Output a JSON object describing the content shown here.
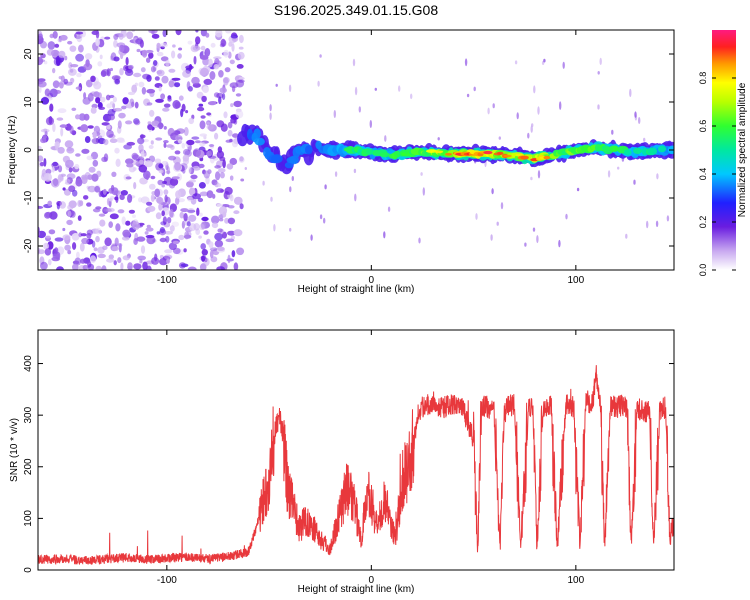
{
  "title": "S196.2025.349.01.15.G08",
  "colors": {
    "snr_line": "#e8383c",
    "frame": "#000000",
    "scatter_violet": "#6a1de0"
  },
  "chart_data": [
    {
      "type": "heatmap",
      "name": "spectrogram",
      "xlabel": "Height of straight line (km)",
      "ylabel": "Frequency (Hz)",
      "xlim": [
        -163,
        148
      ],
      "ylim": [
        -25,
        25
      ],
      "xticks": [
        -100,
        0,
        100
      ],
      "yticks": [
        -20,
        -10,
        0,
        10,
        20
      ],
      "xtick_labels": [
        "-100",
        "0",
        "100"
      ],
      "ytick_labels": [
        "-20",
        "-10",
        "0",
        "10",
        "20"
      ],
      "colorbar": {
        "label": "Normalized spectral amplitude",
        "range": [
          0,
          1
        ],
        "ticks": [
          0.0,
          0.2,
          0.4,
          0.6,
          0.8
        ],
        "tick_labels": [
          "0.0",
          "0.2",
          "0.4",
          "0.6",
          "0.8"
        ]
      },
      "noise_region": {
        "x": [
          -163,
          -63
        ],
        "level": 0.1
      },
      "ridge": [
        {
          "x": -63,
          "f": 3.5,
          "a": 0.28
        },
        {
          "x": -55,
          "f": 2.5,
          "a": 0.35
        },
        {
          "x": -48,
          "f": -1.5,
          "a": 0.3
        },
        {
          "x": -42,
          "f": -3.0,
          "a": 0.3
        },
        {
          "x": -36,
          "f": -1.0,
          "a": 0.32
        },
        {
          "x": -28,
          "f": 0.2,
          "a": 0.3
        },
        {
          "x": -20,
          "f": 0.0,
          "a": 0.35
        },
        {
          "x": -10,
          "f": 0.0,
          "a": 0.55
        },
        {
          "x": 0,
          "f": -0.5,
          "a": 0.5
        },
        {
          "x": 10,
          "f": -1.0,
          "a": 0.55
        },
        {
          "x": 20,
          "f": -0.5,
          "a": 0.65
        },
        {
          "x": 30,
          "f": -0.5,
          "a": 0.7
        },
        {
          "x": 40,
          "f": -0.8,
          "a": 0.85
        },
        {
          "x": 50,
          "f": -0.8,
          "a": 0.9
        },
        {
          "x": 60,
          "f": -0.8,
          "a": 0.85
        },
        {
          "x": 70,
          "f": -1.2,
          "a": 0.75
        },
        {
          "x": 80,
          "f": -1.8,
          "a": 0.85
        },
        {
          "x": 90,
          "f": -1.0,
          "a": 0.7
        },
        {
          "x": 100,
          "f": 0.0,
          "a": 0.65
        },
        {
          "x": 110,
          "f": 0.5,
          "a": 0.6
        },
        {
          "x": 120,
          "f": 0.0,
          "a": 0.55
        },
        {
          "x": 130,
          "f": -0.5,
          "a": 0.5
        },
        {
          "x": 140,
          "f": 0.0,
          "a": 0.45
        },
        {
          "x": 148,
          "f": 0.0,
          "a": 0.45
        }
      ]
    },
    {
      "type": "line",
      "name": "snr",
      "xlabel": "Height of straight line (km)",
      "ylabel": "SNR (10 * v/v)",
      "xlim": [
        -163,
        148
      ],
      "ylim": [
        0,
        465
      ],
      "xticks": [
        -100,
        0,
        100
      ],
      "yticks": [
        0,
        100,
        200,
        300,
        400
      ],
      "xtick_labels": [
        "-100",
        "0",
        "100"
      ],
      "ytick_labels": [
        "0",
        "100",
        "200",
        "300",
        "400"
      ],
      "series": [
        {
          "name": "SNR",
          "x": [
            -163,
            -150,
            -140,
            -130,
            -120,
            -110,
            -100,
            -90,
            -80,
            -70,
            -60,
            -55,
            -50,
            -47,
            -45,
            -43,
            -41,
            -38,
            -35,
            -32,
            -28,
            -25,
            -20,
            -17,
            -12,
            -8,
            -5,
            -2,
            0,
            3,
            6,
            9,
            12,
            15,
            18,
            20,
            23,
            25,
            27,
            30,
            35,
            40,
            45,
            50,
            52,
            54,
            57,
            60,
            63,
            65,
            67,
            70,
            73,
            77,
            79,
            81,
            84,
            86,
            88,
            91,
            95,
            97,
            99,
            102,
            105,
            108,
            110,
            112,
            114,
            117,
            120,
            123,
            125,
            127,
            130,
            134,
            136,
            138,
            141,
            144,
            146,
            148
          ],
          "y": [
            20,
            22,
            18,
            21,
            24,
            20,
            23,
            25,
            22,
            26,
            35,
            100,
            180,
            270,
            300,
            260,
            160,
            120,
            80,
            100,
            80,
            60,
            40,
            90,
            160,
            120,
            60,
            150,
            130,
            80,
            140,
            100,
            60,
            170,
            200,
            230,
            310,
            315,
            320,
            325,
            315,
            320,
            310,
            250,
            40,
            320,
            315,
            305,
            40,
            300,
            320,
            320,
            40,
            320,
            315,
            40,
            315,
            320,
            315,
            45,
            320,
            320,
            315,
            45,
            330,
            320,
            380,
            320,
            45,
            320,
            315,
            320,
            310,
            45,
            315,
            305,
            310,
            40,
            310,
            315,
            55,
            100
          ]
        }
      ]
    }
  ]
}
